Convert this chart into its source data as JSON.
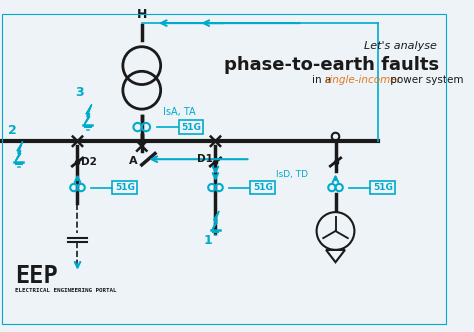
{
  "bg_color": "#eef3f7",
  "line_color_black": "#1a1a1a",
  "line_color_cyan": "#00aacc",
  "text_color_dark": "#1a1a1a",
  "text_color_orange": "#e07820",
  "title1": "Let's analyse",
  "title2": "phase-to-earth faults",
  "title3_pre": "in a ",
  "title3_mid": "single-incomer",
  "title3_post": " power system",
  "eep_text": "EEP",
  "eep_sub": "ELECTRICAL ENGINEERING PORTAL",
  "label_51G": "51G",
  "label_IsA_TA": "IsA, TA",
  "label_IsD_TD": "IsD, TD",
  "label_A": "A",
  "label_H": "H",
  "label_D1": "D1",
  "label_D2": "D2",
  "label_1": "1",
  "label_2": "2",
  "label_3": "3"
}
